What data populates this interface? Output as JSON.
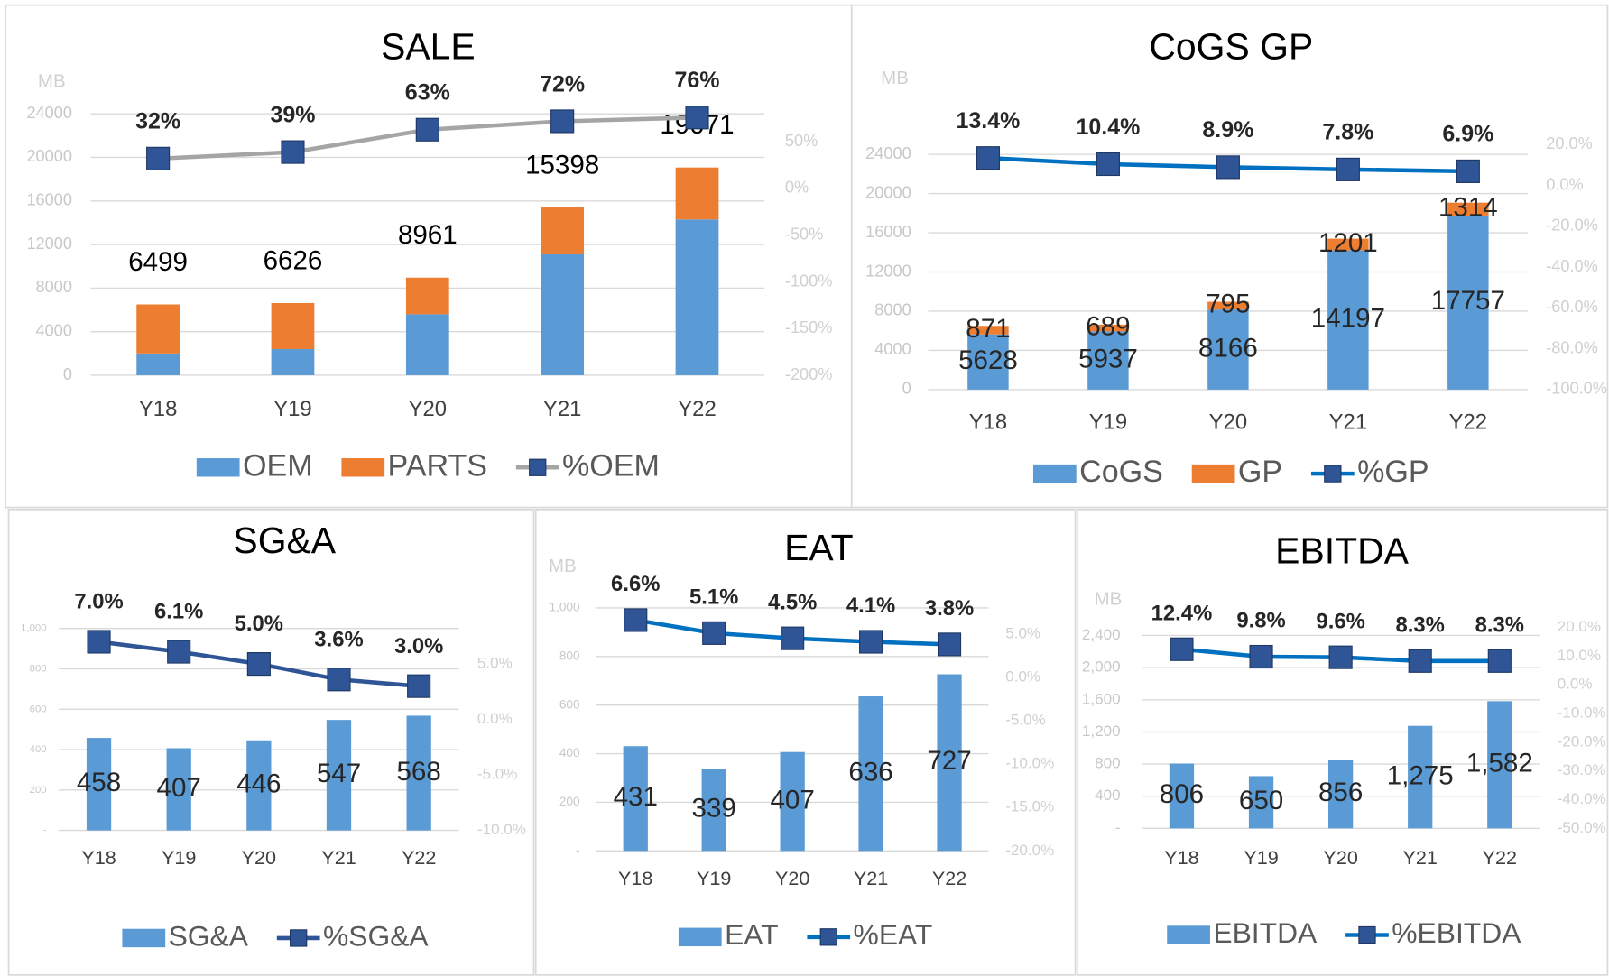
{
  "chart_data": [
    {
      "type": "bar",
      "stacked": true,
      "title": "SALE",
      "y_label": "MB",
      "categories": [
        "Y18",
        "Y19",
        "Y20",
        "Y21",
        "Y22"
      ],
      "series": [
        {
          "name": "OEM",
          "type": "bar",
          "color": "#5b9bd5",
          "values": [
            2000,
            2400,
            5600,
            11100,
            14300
          ]
        },
        {
          "name": "PARTS",
          "type": "bar",
          "color": "#ed7d31",
          "values": [
            4499,
            4226,
            3361,
            4298,
            4771
          ]
        },
        {
          "name": "%OEM",
          "type": "line",
          "axis": "y2",
          "color": "#a5a5a5",
          "marker_color": "#2f5597",
          "values": [
            32,
            39,
            63,
            72,
            76
          ],
          "value_labels": [
            "32%",
            "39%",
            "63%",
            "72%",
            "76%"
          ]
        }
      ],
      "totals": [
        6499,
        6626,
        8961,
        15398,
        19071
      ],
      "ylim": [
        0,
        24000
      ],
      "yticks": [
        0,
        4000,
        8000,
        12000,
        16000,
        20000,
        24000
      ],
      "y2lim": [
        -200,
        80
      ],
      "y2ticks": [
        {
          "value": -200,
          "label": "-200%"
        },
        {
          "value": -150,
          "label": "-150%"
        },
        {
          "value": -100,
          "label": "-100%"
        },
        {
          "value": -50,
          "label": "-50%"
        },
        {
          "value": 0,
          "label": "0%"
        },
        {
          "value": 50,
          "label": "50%"
        }
      ],
      "grid": true
    },
    {
      "type": "bar",
      "stacked": true,
      "title": "CoGS GP",
      "y_label": "MB",
      "categories": [
        "Y18",
        "Y19",
        "Y20",
        "Y21",
        "Y22"
      ],
      "series": [
        {
          "name": "CoGS",
          "type": "bar",
          "color": "#5b9bd5",
          "data_labels": true,
          "values": [
            5628,
            5937,
            8166,
            14197,
            17757
          ]
        },
        {
          "name": "GP",
          "type": "bar",
          "color": "#ed7d31",
          "data_labels": true,
          "values": [
            871,
            689,
            795,
            1201,
            1314
          ]
        },
        {
          "name": "%GP",
          "type": "line",
          "axis": "y2",
          "color": "#0070c0",
          "marker_color": "#2f5597",
          "values": [
            13.4,
            10.4,
            8.9,
            7.8,
            6.9
          ],
          "value_labels": [
            "13.4%",
            "10.4%",
            "8.9%",
            "7.8%",
            "6.9%"
          ]
        }
      ],
      "ylim": [
        0,
        25000
      ],
      "yticks": [
        0,
        4000,
        8000,
        12000,
        16000,
        20000,
        24000
      ],
      "y2lim": [
        -100,
        20
      ],
      "y2ticks": [
        {
          "value": -100,
          "label": "-100.0%"
        },
        {
          "value": -80,
          "label": "-80.0%"
        },
        {
          "value": -60,
          "label": "-60.0%"
        },
        {
          "value": -40,
          "label": "-40.0%"
        },
        {
          "value": -20,
          "label": "-20.0%"
        },
        {
          "value": 0,
          "label": "0.0%"
        },
        {
          "value": 20,
          "label": "20.0%"
        }
      ],
      "grid": true
    },
    {
      "type": "bar",
      "stacked": true,
      "title": "SG&A",
      "categories": [
        "Y18",
        "Y19",
        "Y20",
        "Y21",
        "Y22"
      ],
      "series": [
        {
          "name": "SG&A",
          "type": "bar",
          "color": "#5b9bd5",
          "data_labels": true,
          "values": [
            458,
            407,
            446,
            547,
            568
          ]
        },
        {
          "name": "%SG&A",
          "type": "line",
          "axis": "y2",
          "color": "#2f5597",
          "marker_color": "#2f5597",
          "values": [
            7.0,
            6.1,
            5.0,
            3.6,
            3.0
          ],
          "value_labels": [
            "7.0%",
            "6.1%",
            "5.0%",
            "3.6%",
            "3.0%"
          ]
        }
      ],
      "ylim": [
        0,
        1000
      ],
      "yticks": [
        {
          "value": 0,
          "label": "-"
        },
        200,
        400,
        600,
        800,
        {
          "value": 1000,
          "label": "1,000"
        }
      ],
      "y2lim": [
        -10,
        8.2
      ],
      "y2ticks": [
        {
          "value": -10,
          "label": "-10.0%"
        },
        {
          "value": -5,
          "label": "-5.0%"
        },
        {
          "value": 0,
          "label": "0.0%"
        },
        {
          "value": 5,
          "label": "5.0%"
        }
      ],
      "grid": true
    },
    {
      "type": "bar",
      "stacked": true,
      "title": "EAT",
      "y_label": "MB",
      "categories": [
        "Y18",
        "Y19",
        "Y20",
        "Y21",
        "Y22"
      ],
      "series": [
        {
          "name": "EAT",
          "type": "bar",
          "color": "#5b9bd5",
          "data_labels": true,
          "values": [
            431,
            339,
            407,
            636,
            727
          ]
        },
        {
          "name": "%EAT",
          "type": "line",
          "axis": "y2",
          "color": "#0070c0",
          "marker_color": "#2f5597",
          "values": [
            6.6,
            5.1,
            4.5,
            4.1,
            3.8
          ],
          "value_labels": [
            "6.6%",
            "5.1%",
            "4.5%",
            "4.1%",
            "3.8%"
          ]
        }
      ],
      "ylim": [
        0,
        1000
      ],
      "yticks": [
        {
          "value": 0,
          "label": "-"
        },
        200,
        400,
        600,
        800,
        {
          "value": 1000,
          "label": "1,000"
        }
      ],
      "y2lim": [
        -20,
        8
      ],
      "y2ticks": [
        {
          "value": -20,
          "label": "-20.0%"
        },
        {
          "value": -15,
          "label": "-15.0%"
        },
        {
          "value": -10,
          "label": "-10.0%"
        },
        {
          "value": -5,
          "label": "-5.0%"
        },
        {
          "value": 0,
          "label": "0.0%"
        },
        {
          "value": 5,
          "label": "5.0%"
        }
      ],
      "grid": true
    },
    {
      "type": "bar",
      "stacked": true,
      "title": "EBITDA",
      "y_label": "MB",
      "categories": [
        "Y18",
        "Y19",
        "Y20",
        "Y21",
        "Y22"
      ],
      "series": [
        {
          "name": "EBITDA",
          "type": "bar",
          "color": "#5b9bd5",
          "data_labels": true,
          "values": [
            806,
            650,
            856,
            1275,
            1582
          ],
          "value_labels": [
            "806",
            "650",
            "856",
            "1,275",
            "1,582"
          ]
        },
        {
          "name": "%EBITDA",
          "type": "line",
          "axis": "y2",
          "color": "#0070c0",
          "marker_color": "#2f5597",
          "values": [
            12.4,
            9.8,
            9.6,
            8.3,
            8.3
          ],
          "value_labels": [
            "12.4%",
            "9.8%",
            "9.6%",
            "8.3%",
            "8.3%"
          ]
        }
      ],
      "ylim": [
        0,
        2500
      ],
      "yticks": [
        {
          "value": 0,
          "label": "-"
        },
        400,
        800,
        {
          "value": 1200,
          "label": "1,200"
        },
        {
          "value": 1600,
          "label": "1,600"
        },
        {
          "value": 2000,
          "label": "2,000"
        },
        {
          "value": 2400,
          "label": "2,400"
        }
      ],
      "y2lim": [
        -50,
        20
      ],
      "y2ticks": [
        {
          "value": -50,
          "label": "-50.0%"
        },
        {
          "value": -40,
          "label": "-40.0%"
        },
        {
          "value": -30,
          "label": "-30.0%"
        },
        {
          "value": -20,
          "label": "-20.0%"
        },
        {
          "value": -10,
          "label": "-10.0%"
        },
        {
          "value": 0,
          "label": "0.0%"
        },
        {
          "value": 10,
          "label": "10.0%"
        },
        {
          "value": 20,
          "label": "20.0%"
        }
      ],
      "grid": true
    }
  ]
}
